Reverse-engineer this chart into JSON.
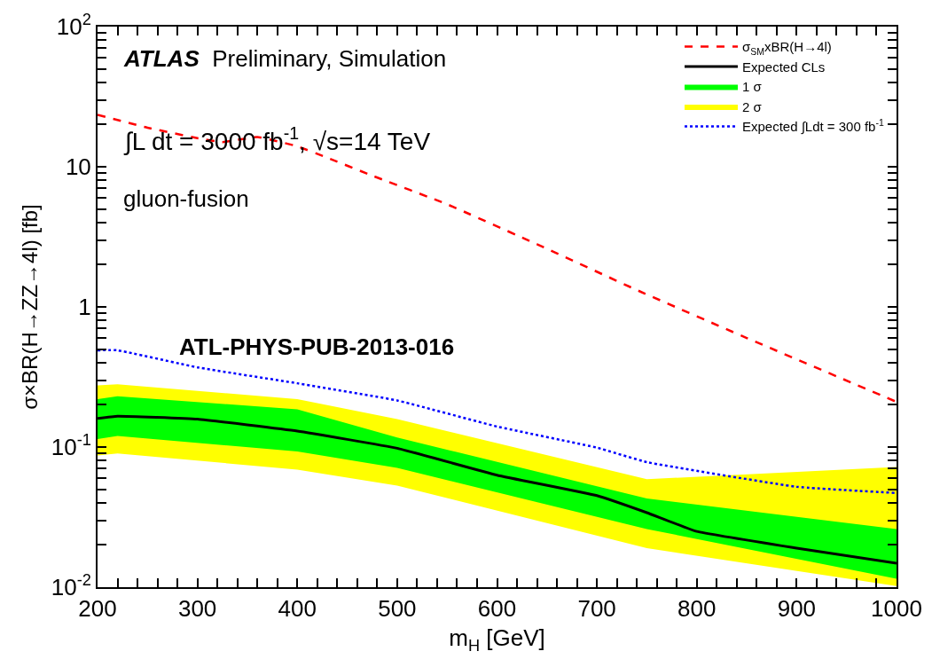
{
  "chart_data": {
    "type": "line",
    "xlabel": "m$_{H}$ [GeV]",
    "ylabel": "σ×BR(H→ZZ→4l) [fb]",
    "annotations": [
      "ATLAS Preliminary, Simulation",
      "∫L dt = 3000 fb$^{-1}$, √s=14 TeV",
      "gluon-fusion",
      "ATL-PHYS-PUB-2013-016"
    ],
    "log": "y",
    "legend": "top right",
    "xlim": [
      200,
      1000
    ],
    "ylim": [
      0.01,
      100
    ],
    "xticks": [
      200,
      {
        "value": 220,
        "label": null
      },
      {
        "value": 240,
        "label": null
      },
      {
        "value": 260,
        "label": null
      },
      {
        "value": 280,
        "label": null
      },
      300,
      {
        "value": 320,
        "label": null
      },
      {
        "value": 340,
        "label": null
      },
      {
        "value": 360,
        "label": null
      },
      {
        "value": 380,
        "label": null
      },
      400,
      {
        "value": 420,
        "label": null
      },
      {
        "value": 440,
        "label": null
      },
      {
        "value": 460,
        "label": null
      },
      {
        "value": 480,
        "label": null
      },
      500,
      {
        "value": 520,
        "label": null
      },
      {
        "value": 540,
        "label": null
      },
      {
        "value": 560,
        "label": null
      },
      {
        "value": 580,
        "label": null
      },
      600,
      {
        "value": 620,
        "label": null
      },
      {
        "value": 640,
        "label": null
      },
      {
        "value": 660,
        "label": null
      },
      {
        "value": 680,
        "label": null
      },
      700,
      {
        "value": 720,
        "label": null
      },
      {
        "value": 740,
        "label": null
      },
      {
        "value": 760,
        "label": null
      },
      {
        "value": 780,
        "label": null
      },
      800,
      {
        "value": 820,
        "label": null
      },
      {
        "value": 840,
        "label": null
      },
      {
        "value": 860,
        "label": null
      },
      {
        "value": 880,
        "label": null
      },
      900,
      {
        "value": 920,
        "label": null
      },
      {
        "value": 940,
        "label": null
      },
      {
        "value": 960,
        "label": null
      },
      {
        "value": 980,
        "label": null
      },
      1000
    ],
    "yticks": [
      {
        "value": 0.01,
        "label": "10$^{-2}$"
      },
      {
        "value": 0.02,
        "label": null
      },
      {
        "value": 0.03,
        "label": null
      },
      {
        "value": 0.04,
        "label": null
      },
      {
        "value": 0.05,
        "label": null
      },
      {
        "value": 0.06,
        "label": null
      },
      {
        "value": 0.07,
        "label": null
      },
      {
        "value": 0.08,
        "label": null
      },
      {
        "value": 0.09,
        "label": null
      },
      {
        "value": 0.1,
        "label": "10$^{-1}$"
      },
      {
        "value": 0.2,
        "label": null
      },
      {
        "value": 0.3,
        "label": null
      },
      {
        "value": 0.4,
        "label": null
      },
      {
        "value": 0.5,
        "label": null
      },
      {
        "value": 0.6,
        "label": null
      },
      {
        "value": 0.7,
        "label": null
      },
      {
        "value": 0.8,
        "label": null
      },
      {
        "value": 0.9,
        "label": null
      },
      1,
      {
        "value": 2,
        "label": null
      },
      {
        "value": 3,
        "label": null
      },
      {
        "value": 4,
        "label": null
      },
      {
        "value": 5,
        "label": null
      },
      {
        "value": 6,
        "label": null
      },
      {
        "value": 7,
        "label": null
      },
      {
        "value": 8,
        "label": null
      },
      {
        "value": 9,
        "label": null
      },
      10,
      {
        "value": 20,
        "label": null
      },
      {
        "value": 30,
        "label": null
      },
      {
        "value": 40,
        "label": null
      },
      {
        "value": 50,
        "label": null
      },
      {
        "value": 60,
        "label": null
      },
      {
        "value": 70,
        "label": null
      },
      {
        "value": 80,
        "label": null
      },
      {
        "value": 90,
        "label": null
      },
      {
        "value": 100,
        "label": "10$^{2}$"
      }
    ],
    "series": [
      {
        "name": "σ$_{SM}$xBR(H→4l)",
        "color": "#ff0000",
        "line_style": "dashed",
        "x": [
          200,
          250,
          300,
          325,
          360,
          400,
          430,
          474,
          550,
          640,
          742,
          850,
          1000
        ],
        "values": [
          23.5,
          19,
          16,
          15,
          16.3,
          14,
          11.6,
          8.7,
          5.4,
          2.8,
          1.3,
          0.6,
          0.21
        ]
      },
      {
        "name": "Expected CLs",
        "color": "#000000",
        "line_style": "solid",
        "x": [
          200,
          220,
          300,
          400,
          500,
          600,
          700,
          750,
          800,
          900,
          1000
        ],
        "values": [
          0.16,
          0.166,
          0.158,
          0.13,
          0.098,
          0.063,
          0.045,
          0.034,
          0.025,
          0.019,
          0.0148
        ]
      },
      {
        "name": "1 σ",
        "type": "area",
        "color": "#00ff00",
        "x": [
          200,
          220,
          400,
          500,
          750,
          1000
        ],
        "values": [
          null,
          null,
          null,
          null,
          null,
          null
        ],
        "lower": [
          0.114,
          0.12,
          0.093,
          0.071,
          0.026,
          0.0115
        ],
        "upper": [
          0.22,
          0.23,
          0.186,
          0.117,
          0.043,
          0.026
        ]
      },
      {
        "name": "2 σ",
        "type": "area",
        "color": "#ffff00",
        "x": [
          200,
          220,
          400,
          500,
          750,
          1000
        ],
        "values": [
          null,
          null,
          null,
          null,
          null,
          null
        ],
        "lower": [
          0.087,
          0.09,
          0.069,
          0.053,
          0.019,
          0.0102
        ],
        "upper": [
          0.275,
          0.28,
          0.22,
          0.158,
          0.059,
          0.072
        ]
      },
      {
        "name": "Expected ∫Ldt = 300 fb$^{-1}$",
        "color": "#0000ff",
        "line_style": "dotted",
        "x": [
          200,
          220,
          300,
          400,
          500,
          600,
          700,
          750,
          900,
          1000
        ],
        "values": [
          0.49,
          0.49,
          0.37,
          0.285,
          0.215,
          0.14,
          0.099,
          0.078,
          0.052,
          0.047
        ]
      }
    ]
  }
}
